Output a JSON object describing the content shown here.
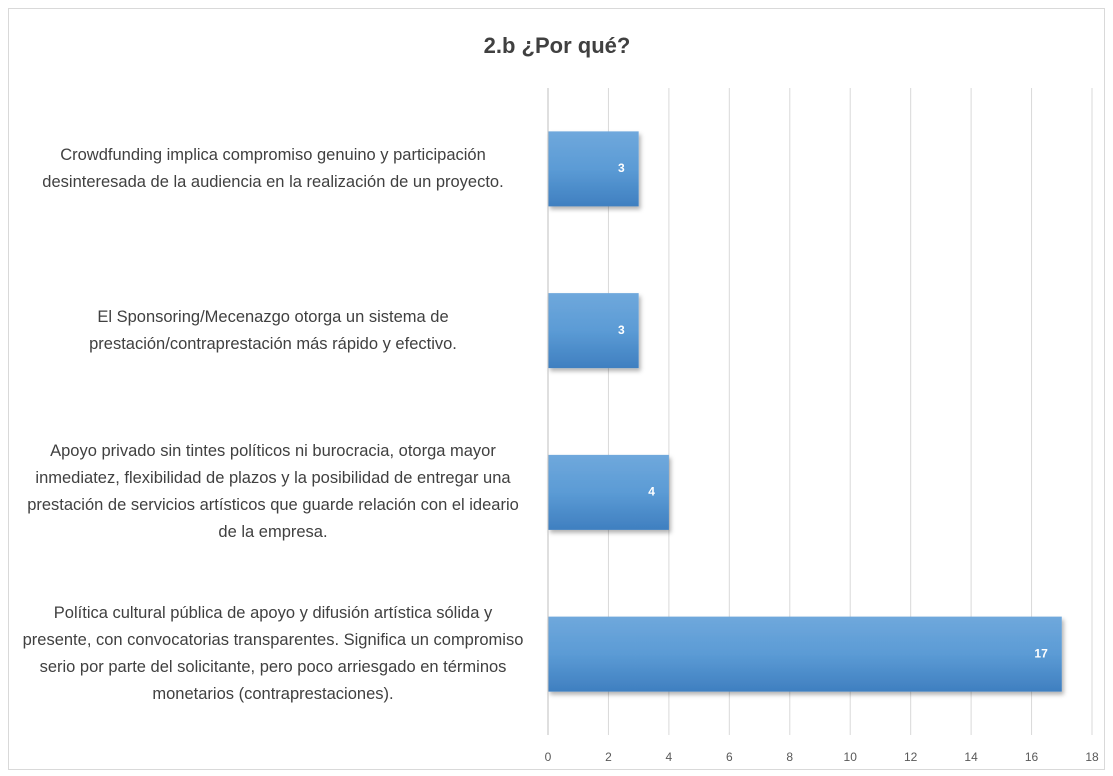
{
  "chart_data": {
    "type": "bar",
    "orientation": "horizontal",
    "title": "2.b ¿Por qué?",
    "categories": [
      "Crowdfunding implica compromiso genuino y participación desinteresada de la audiencia en la realización de un proyecto.",
      "El Sponsoring/Mecenazgo otorga un sistema de prestación/contraprestación más rápido y efectivo.",
      "Apoyo privado sin tintes políticos ni burocracia, otorga mayor inmediatez, flexibilidad de plazos y la posibilidad de entregar una prestación de servicios artísticos que guarde relación con el ideario de la empresa.",
      "Política cultural pública de apoyo y difusión artística sólida y presente, con convocatorias transparentes. Significa un compromiso serio por parte del solicitante, pero poco arriesgado en términos monetarios (contraprestaciones)."
    ],
    "values": [
      3,
      3,
      4,
      17
    ],
    "color": "#5b9bd5",
    "xlim": [
      0,
      18
    ],
    "xticks": [
      0,
      2,
      4,
      6,
      8,
      10,
      12,
      14,
      16,
      18
    ],
    "grid": true
  }
}
